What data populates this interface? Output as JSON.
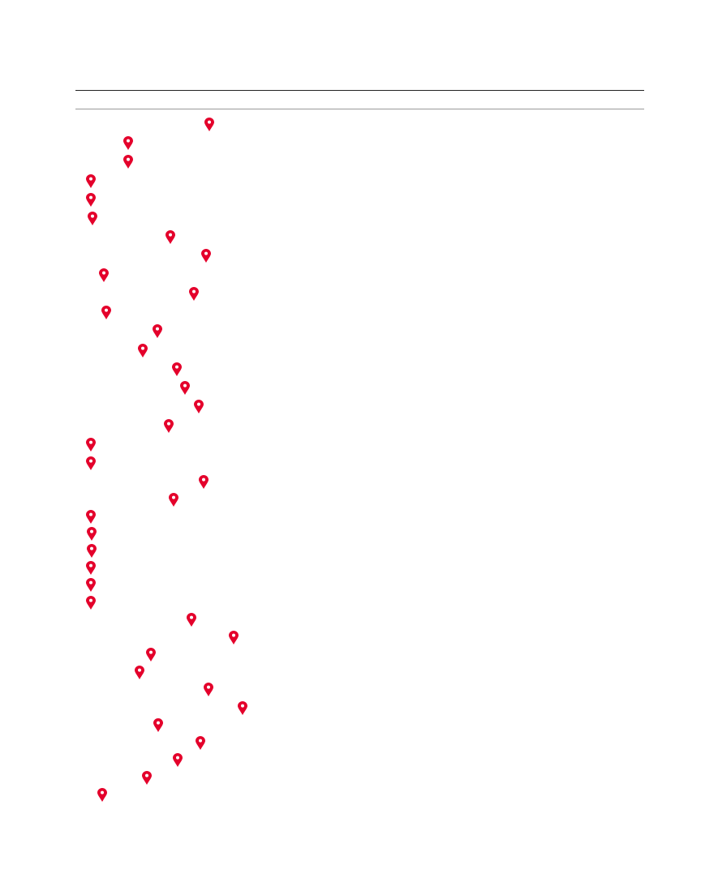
{
  "table": {
    "marker_icon": "map-pin-icon",
    "marker_color": "#e4002b",
    "row_count": 38
  }
}
